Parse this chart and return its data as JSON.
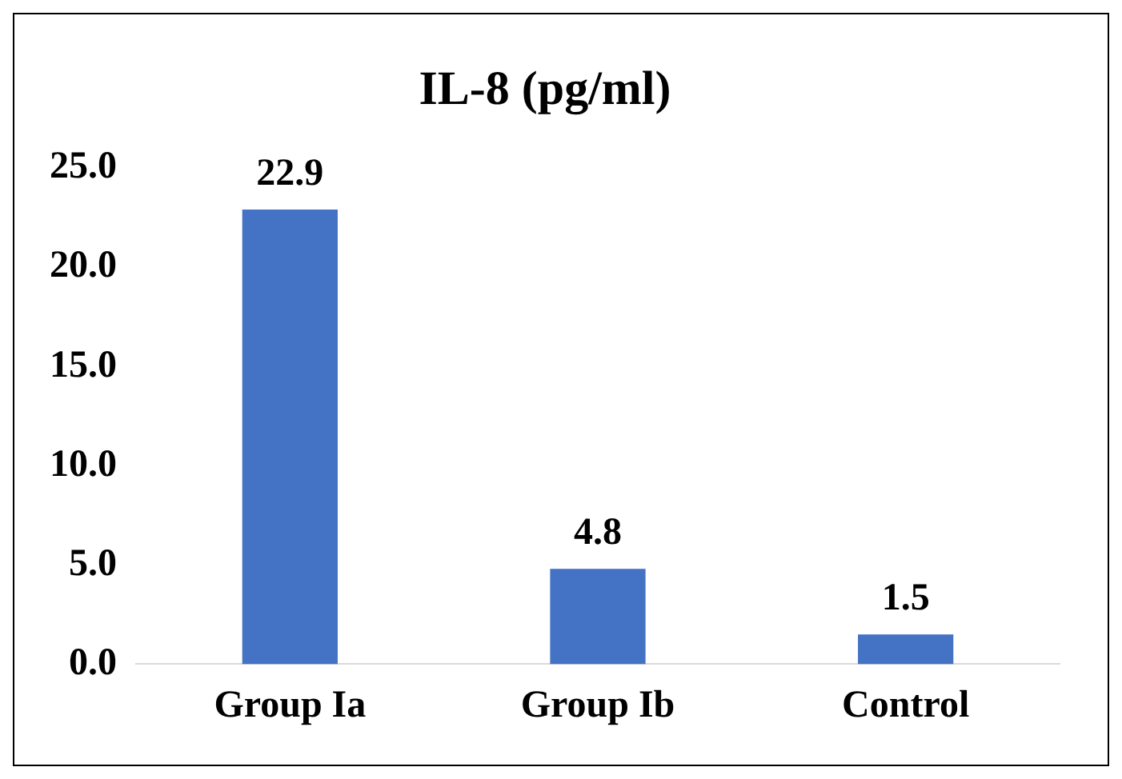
{
  "chart_data": {
    "type": "bar",
    "title": "IL-8 (pg/ml)",
    "categories": [
      "Group Ia",
      "Group Ib",
      "Control"
    ],
    "values": [
      22.9,
      4.8,
      1.5
    ],
    "color": "#4472c4",
    "ylim": [
      0,
      25
    ],
    "yticks": [
      {
        "value": 0,
        "label": "0.0"
      },
      {
        "value": 5,
        "label": "5.0"
      },
      {
        "value": 10,
        "label": "10.0"
      },
      {
        "value": 15,
        "label": "15.0"
      },
      {
        "value": 20,
        "label": "20.0"
      },
      {
        "value": 25,
        "label": "25.0"
      }
    ],
    "grid": false,
    "data_labels": true,
    "legend": false
  }
}
